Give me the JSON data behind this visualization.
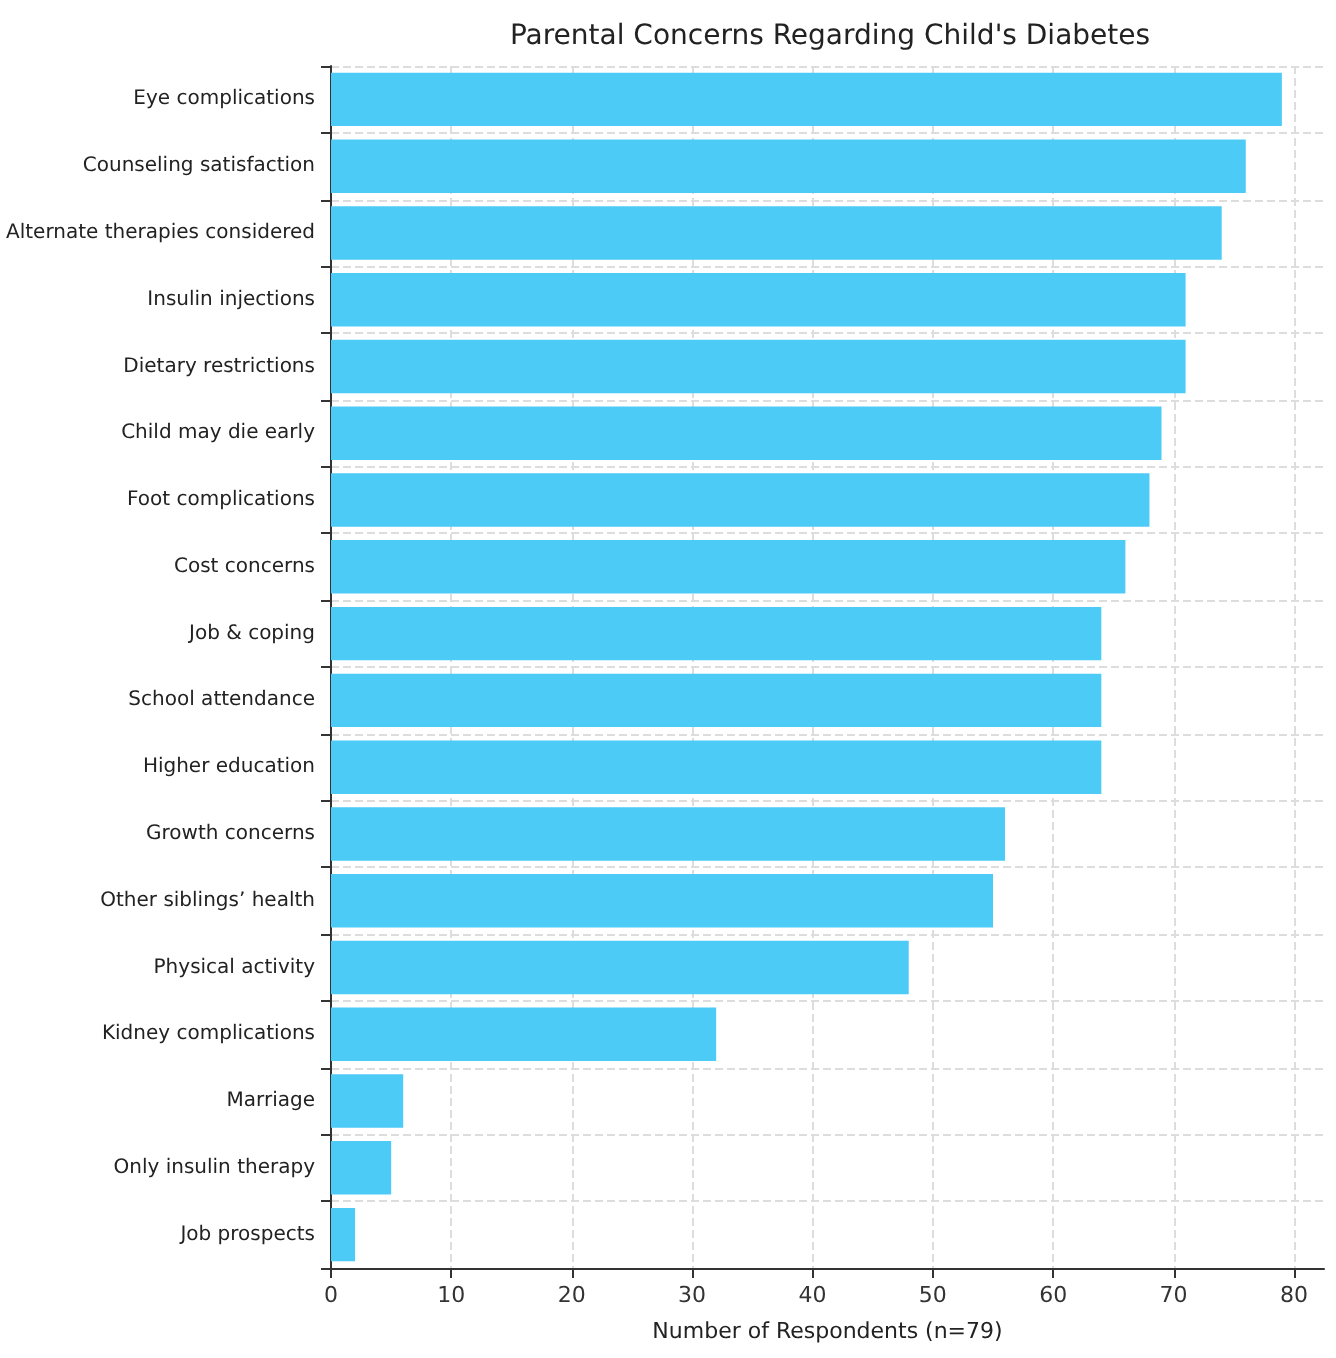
{
  "chart_data": {
    "type": "bar",
    "orientation": "horizontal",
    "title": "Parental Concerns Regarding Child's Diabetes",
    "xlabel": "Number of Respondents (n=79)",
    "categories": [
      "Eye complications",
      "Counseling satisfaction",
      "Alternate therapies considered",
      "Insulin injections",
      "Dietary restrictions",
      "Child may die early",
      "Foot complications",
      "Cost concerns",
      "Job & coping",
      "School attendance",
      "Higher education",
      "Growth concerns",
      "Other siblings’ health",
      "Physical activity",
      "Kidney complications",
      "Marriage",
      "Only insulin therapy",
      "Job prospects"
    ],
    "values": [
      79,
      76,
      74,
      71,
      71,
      69,
      68,
      66,
      64,
      64,
      64,
      56,
      55,
      48,
      32,
      6,
      5,
      2
    ],
    "color": "#4dcbf7",
    "xlim": [
      0,
      82.5
    ],
    "xticks": [
      0,
      10,
      20,
      30,
      40,
      50,
      60,
      70,
      80
    ],
    "grid": true
  }
}
